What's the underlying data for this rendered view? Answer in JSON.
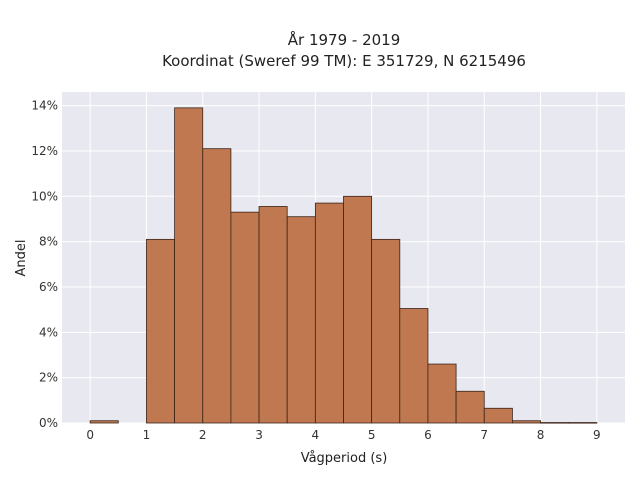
{
  "chart_data": {
    "type": "bar",
    "title_lines": [
      "År 1979 - 2019",
      "Koordinat (Sweref 99 TM): E 351729, N 6215496"
    ],
    "xlabel": "Vågperiod (s)",
    "ylabel": "Andel",
    "bin_width": 0.5,
    "bins": [
      {
        "x0": 0.0,
        "value": 0.1
      },
      {
        "x0": 0.5,
        "value": 0.0
      },
      {
        "x0": 1.0,
        "value": 8.1
      },
      {
        "x0": 1.5,
        "value": 13.9
      },
      {
        "x0": 2.0,
        "value": 12.1
      },
      {
        "x0": 2.5,
        "value": 9.3
      },
      {
        "x0": 3.0,
        "value": 9.55
      },
      {
        "x0": 3.5,
        "value": 9.1
      },
      {
        "x0": 4.0,
        "value": 9.7
      },
      {
        "x0": 4.5,
        "value": 10.0
      },
      {
        "x0": 5.0,
        "value": 8.1
      },
      {
        "x0": 5.5,
        "value": 5.05
      },
      {
        "x0": 6.0,
        "value": 2.6
      },
      {
        "x0": 6.5,
        "value": 1.4
      },
      {
        "x0": 7.0,
        "value": 0.65
      },
      {
        "x0": 7.5,
        "value": 0.1
      },
      {
        "x0": 8.0,
        "value": 0.02
      },
      {
        "x0": 8.5,
        "value": 0.02
      }
    ],
    "xticks": [
      "0",
      "1",
      "2",
      "3",
      "4",
      "5",
      "6",
      "7",
      "8",
      "9"
    ],
    "xtick_values": [
      0,
      1,
      2,
      3,
      4,
      5,
      6,
      7,
      8,
      9
    ],
    "yticks": [
      "0%",
      "2%",
      "4%",
      "6%",
      "8%",
      "10%",
      "12%",
      "14%"
    ],
    "ytick_values": [
      0,
      2,
      4,
      6,
      8,
      10,
      12,
      14
    ],
    "xlim": [
      -0.5,
      9.5
    ],
    "ylim": [
      0,
      14.6
    ],
    "grid": true,
    "colors": {
      "bar_fill": "#c07850",
      "bar_stroke": "#3b2418",
      "plot_bg": "#e8e8f1",
      "grid": "#ffffff"
    }
  }
}
